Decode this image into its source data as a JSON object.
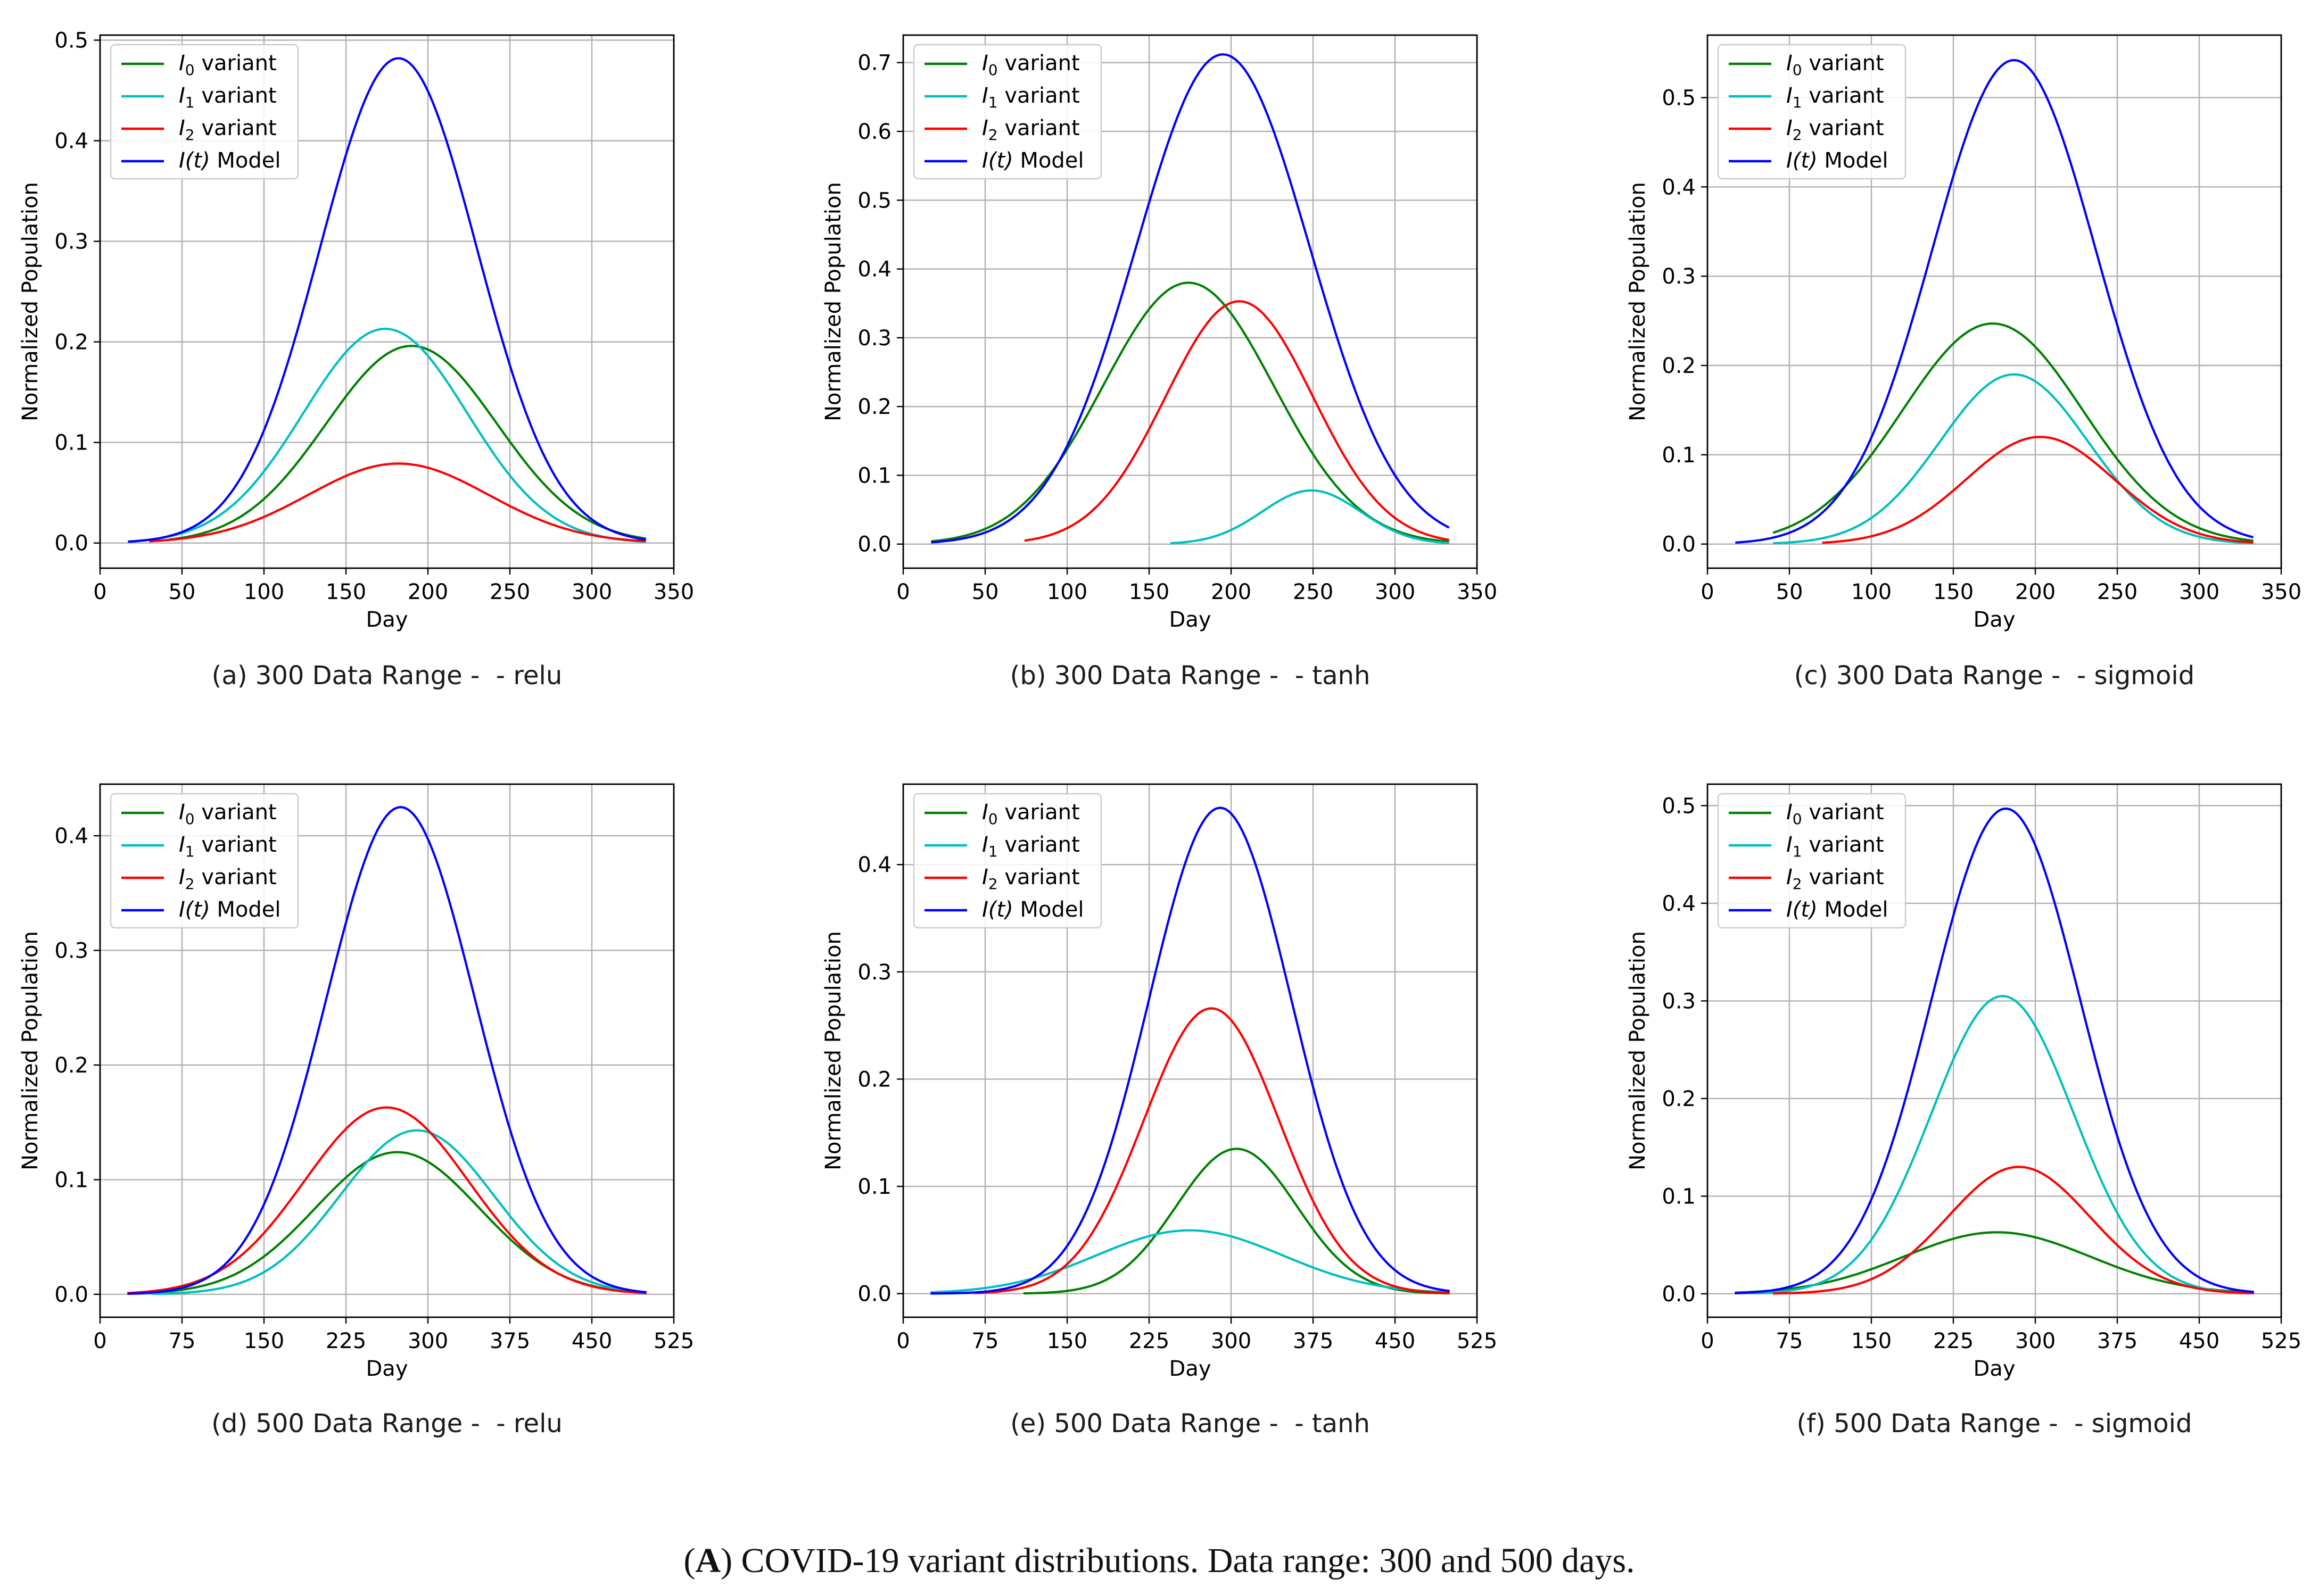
{
  "figure_caption": {
    "letter": "A",
    "prefix": "(",
    "suffix": ") COVID-19 variant distributions. Data range: 300 and 500 days."
  },
  "chart_data": [
    {
      "type": "line",
      "caption": "(a) 300 Data Range -  - relu",
      "xlabel": "Day",
      "ylabel": "Normalized Population",
      "xlim": [
        0,
        350
      ],
      "ylim": [
        -0.025,
        0.505
      ],
      "xticks": [
        0,
        50,
        100,
        150,
        200,
        250,
        300,
        350
      ],
      "yticks": [
        0.0,
        0.1,
        0.2,
        0.3,
        0.4,
        0.5
      ],
      "ytick_labels": [
        "0.0",
        "0.1",
        "0.2",
        "0.3",
        "0.4",
        "0.5"
      ],
      "grid": true,
      "legend_position": "top-left",
      "series": [
        {
          "name": "I0 variant",
          "math": "I",
          "sub": "0",
          "text": " variant",
          "color": "#008000",
          "peak_x": 190,
          "peak_y": 0.196,
          "sigma": 52,
          "x_start": 42,
          "x_end": 333
        },
        {
          "name": "I1 variant",
          "math": "I",
          "sub": "1",
          "text": " variant",
          "color": "#00bfbf",
          "peak_x": 174,
          "peak_y": 0.213,
          "sigma": 50,
          "x_start": 17,
          "x_end": 333
        },
        {
          "name": "I2 variant",
          "math": "I",
          "sub": "2",
          "text": " variant",
          "color": "#ff0000",
          "peak_x": 182,
          "peak_y": 0.079,
          "sigma": 55,
          "x_start": 30,
          "x_end": 333
        },
        {
          "name": "I(t) Model",
          "math": "I(t)",
          "sub": "",
          "text": " Model",
          "color": "#0000ff",
          "peak_x": 182,
          "peak_y": 0.482,
          "sigma": 48,
          "x_start": 17,
          "x_end": 333
        }
      ]
    },
    {
      "type": "line",
      "caption": "(b) 300 Data Range -  - tanh",
      "xlabel": "Day",
      "ylabel": "Normalized Population",
      "xlim": [
        0,
        350
      ],
      "ylim": [
        -0.035,
        0.74
      ],
      "xticks": [
        0,
        50,
        100,
        150,
        200,
        250,
        300,
        350
      ],
      "yticks": [
        0.0,
        0.1,
        0.2,
        0.3,
        0.4,
        0.5,
        0.6,
        0.7
      ],
      "ytick_labels": [
        "0.0",
        "0.1",
        "0.2",
        "0.3",
        "0.4",
        "0.5",
        "0.6",
        "0.7"
      ],
      "grid": true,
      "legend_position": "top-left",
      "series": [
        {
          "name": "I0 variant",
          "math": "I",
          "sub": "0",
          "text": " variant",
          "color": "#008000",
          "peak_x": 174,
          "peak_y": 0.38,
          "sigma": 52,
          "x_start": 17,
          "x_end": 333
        },
        {
          "name": "I1 variant",
          "math": "I",
          "sub": "1",
          "text": " variant",
          "color": "#00bfbf",
          "peak_x": 249,
          "peak_y": 0.078,
          "sigma": 30,
          "x_start": 163,
          "x_end": 333
        },
        {
          "name": "I2 variant",
          "math": "I",
          "sub": "2",
          "text": " variant",
          "color": "#ff0000",
          "peak_x": 205,
          "peak_y": 0.353,
          "sigma": 45,
          "x_start": 74,
          "x_end": 333
        },
        {
          "name": "I(t) Model",
          "math": "I(t)",
          "sub": "",
          "text": " Model",
          "color": "#0000ff",
          "peak_x": 195,
          "peak_y": 0.712,
          "sigma": 53,
          "x_start": 17,
          "x_end": 333
        }
      ]
    },
    {
      "type": "line",
      "caption": "(c) 300 Data Range -  - sigmoid",
      "xlabel": "Day",
      "ylabel": "Normalized Population",
      "xlim": [
        0,
        350
      ],
      "ylim": [
        -0.027,
        0.57
      ],
      "xticks": [
        0,
        50,
        100,
        150,
        200,
        250,
        300,
        350
      ],
      "yticks": [
        0.0,
        0.1,
        0.2,
        0.3,
        0.4,
        0.5
      ],
      "ytick_labels": [
        "0.0",
        "0.1",
        "0.2",
        "0.3",
        "0.4",
        "0.5"
      ],
      "grid": true,
      "legend_position": "top-left",
      "series": [
        {
          "name": "I0 variant",
          "math": "I",
          "sub": "0",
          "text": " variant",
          "color": "#008000",
          "peak_x": 174,
          "peak_y": 0.247,
          "sigma": 55,
          "x_start": 40,
          "x_end": 333
        },
        {
          "name": "I1 variant",
          "math": "I",
          "sub": "1",
          "text": " variant",
          "color": "#00bfbf",
          "peak_x": 187,
          "peak_y": 0.19,
          "sigma": 45,
          "x_start": 40,
          "x_end": 333
        },
        {
          "name": "I2 variant",
          "math": "I",
          "sub": "2",
          "text": " variant",
          "color": "#ff0000",
          "peak_x": 203,
          "peak_y": 0.12,
          "sigma": 45,
          "x_start": 70,
          "x_end": 333
        },
        {
          "name": "I(t) Model",
          "math": "I(t)",
          "sub": "",
          "text": " Model",
          "color": "#0000ff",
          "peak_x": 187,
          "peak_y": 0.542,
          "sigma": 50,
          "x_start": 17,
          "x_end": 333
        }
      ]
    },
    {
      "type": "line",
      "caption": "(d) 500 Data Range -  - relu",
      "xlabel": "Day",
      "ylabel": "Normalized Population",
      "xlim": [
        0,
        525
      ],
      "ylim": [
        -0.02,
        0.445
      ],
      "xticks": [
        0,
        75,
        150,
        225,
        300,
        375,
        450,
        525
      ],
      "yticks": [
        0.0,
        0.1,
        0.2,
        0.3,
        0.4
      ],
      "ytick_labels": [
        "0.0",
        "0.1",
        "0.2",
        "0.3",
        "0.4"
      ],
      "grid": true,
      "legend_position": "top-left",
      "series": [
        {
          "name": "I0 variant",
          "math": "I",
          "sub": "0",
          "text": " variant",
          "color": "#008000",
          "peak_x": 272,
          "peak_y": 0.124,
          "sigma": 75,
          "x_start": 45,
          "x_end": 500
        },
        {
          "name": "I1 variant",
          "math": "I",
          "sub": "1",
          "text": " variant",
          "color": "#00bfbf",
          "peak_x": 290,
          "peak_y": 0.143,
          "sigma": 70,
          "x_start": 48,
          "x_end": 500
        },
        {
          "name": "I2 variant",
          "math": "I",
          "sub": "2",
          "text": " variant",
          "color": "#ff0000",
          "peak_x": 262,
          "peak_y": 0.163,
          "sigma": 75,
          "x_start": 25,
          "x_end": 500
        },
        {
          "name": "I(t) Model",
          "math": "I(t)",
          "sub": "",
          "text": " Model",
          "color": "#0000ff",
          "peak_x": 275,
          "peak_y": 0.425,
          "sigma": 68,
          "x_start": 25,
          "x_end": 500
        }
      ]
    },
    {
      "type": "line",
      "caption": "(e) 500 Data Range -  - tanh",
      "xlabel": "Day",
      "ylabel": "Normalized Population",
      "xlim": [
        0,
        525
      ],
      "ylim": [
        -0.022,
        0.475
      ],
      "xticks": [
        0,
        75,
        150,
        225,
        300,
        375,
        450,
        525
      ],
      "yticks": [
        0.0,
        0.1,
        0.2,
        0.3,
        0.4
      ],
      "ytick_labels": [
        "0.0",
        "0.1",
        "0.2",
        "0.3",
        "0.4"
      ],
      "grid": true,
      "legend_position": "top-left",
      "series": [
        {
          "name": "I0 variant",
          "math": "I",
          "sub": "0",
          "text": " variant",
          "color": "#008000",
          "peak_x": 305,
          "peak_y": 0.135,
          "sigma": 55,
          "x_start": 110,
          "x_end": 500
        },
        {
          "name": "I1 variant",
          "math": "I",
          "sub": "1",
          "text": " variant",
          "color": "#00bfbf",
          "peak_x": 262,
          "peak_y": 0.059,
          "sigma": 85,
          "x_start": 25,
          "x_end": 500
        },
        {
          "name": "I2 variant",
          "math": "I",
          "sub": "2",
          "text": " variant",
          "color": "#ff0000",
          "peak_x": 282,
          "peak_y": 0.266,
          "sigma": 62,
          "x_start": 65,
          "x_end": 500
        },
        {
          "name": "I(t) Model",
          "math": "I(t)",
          "sub": "",
          "text": " Model",
          "color": "#0000ff",
          "peak_x": 290,
          "peak_y": 0.453,
          "sigma": 65,
          "x_start": 25,
          "x_end": 500
        }
      ]
    },
    {
      "type": "line",
      "caption": "(f) 500 Data Range -  - sigmoid",
      "xlabel": "Day",
      "ylabel": "Normalized Population",
      "xlim": [
        0,
        525
      ],
      "ylim": [
        -0.024,
        0.522
      ],
      "xticks": [
        0,
        75,
        150,
        225,
        300,
        375,
        450,
        525
      ],
      "yticks": [
        0.0,
        0.1,
        0.2,
        0.3,
        0.4,
        0.5
      ],
      "ytick_labels": [
        "0.0",
        "0.1",
        "0.2",
        "0.3",
        "0.4",
        "0.5"
      ],
      "grid": true,
      "legend_position": "top-left",
      "series": [
        {
          "name": "I0 variant",
          "math": "I",
          "sub": "0",
          "text": " variant",
          "color": "#008000",
          "peak_x": 265,
          "peak_y": 0.063,
          "sigma": 85,
          "x_start": 25,
          "x_end": 500
        },
        {
          "name": "I1 variant",
          "math": "I",
          "sub": "1",
          "text": " variant",
          "color": "#00bfbf",
          "peak_x": 270,
          "peak_y": 0.305,
          "sigma": 65,
          "x_start": 40,
          "x_end": 500
        },
        {
          "name": "I2 variant",
          "math": "I",
          "sub": "2",
          "text": " variant",
          "color": "#ff0000",
          "peak_x": 285,
          "peak_y": 0.13,
          "sigma": 65,
          "x_start": 60,
          "x_end": 500
        },
        {
          "name": "I(t) Model",
          "math": "I(t)",
          "sub": "",
          "text": " Model",
          "color": "#0000ff",
          "peak_x": 273,
          "peak_y": 0.497,
          "sigma": 68,
          "x_start": 25,
          "x_end": 500
        }
      ]
    }
  ]
}
